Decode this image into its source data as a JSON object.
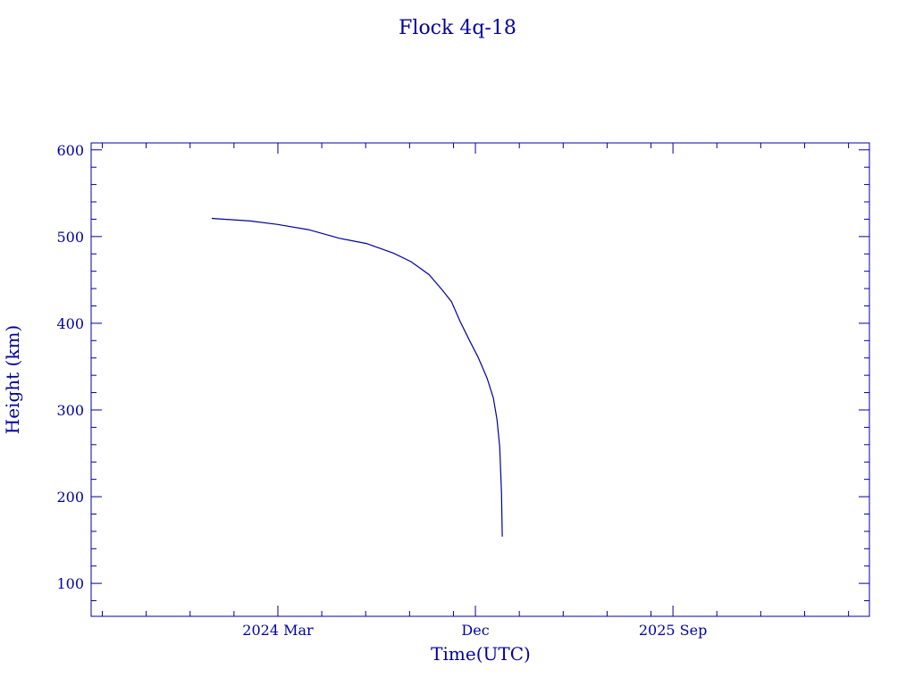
{
  "chart_data": {
    "type": "line",
    "title": "Flock 4q-18",
    "xlabel": "Time(UTC)",
    "ylabel": "Height (km)",
    "color": "#0000a0",
    "xlim": [
      2023.458,
      2026.413
    ],
    "ylim": [
      62,
      608
    ],
    "grid": false,
    "x_ticks": [
      {
        "value": 2024.167,
        "label": "2024 Mar"
      },
      {
        "value": 2024.917,
        "label": "Dec"
      },
      {
        "value": 2025.667,
        "label": "2025 Sep"
      }
    ],
    "y_ticks": [
      {
        "value": 100,
        "label": "100"
      },
      {
        "value": 200,
        "label": "200"
      },
      {
        "value": 300,
        "label": "300"
      },
      {
        "value": 400,
        "label": "400"
      },
      {
        "value": 500,
        "label": "500"
      },
      {
        "value": 600,
        "label": "600"
      }
    ],
    "series": [
      {
        "name": "Flock 4q-18",
        "x": [
          2023.916,
          2024.062,
          2024.164,
          2024.283,
          2024.401,
          2024.503,
          2024.605,
          2024.673,
          2024.741,
          2024.792,
          2024.826,
          2024.859,
          2024.893,
          2024.927,
          2024.961,
          2024.985,
          2024.999,
          2025.009,
          2025.016,
          2025.019
        ],
        "y": [
          521,
          518,
          514,
          508,
          498,
          492,
          481,
          471,
          456,
          438,
          425,
          402,
          381,
          361,
          337,
          314,
          289,
          258,
          206,
          154
        ]
      }
    ]
  }
}
